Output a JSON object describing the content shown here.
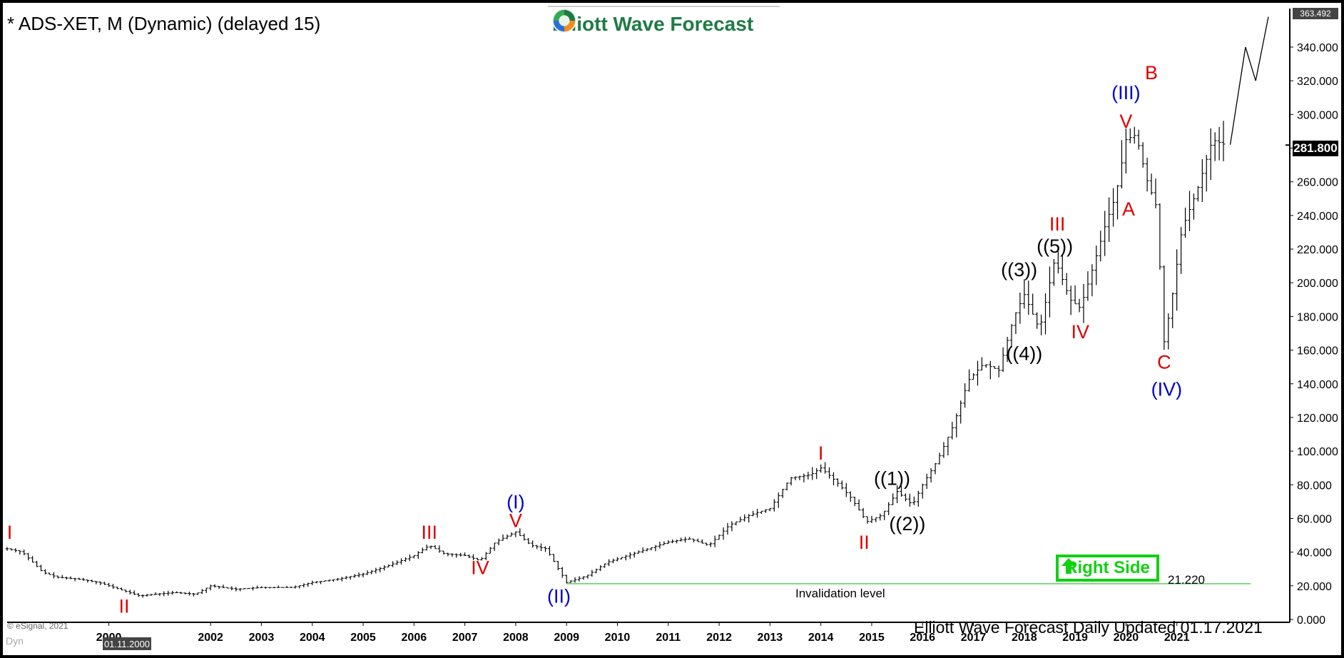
{
  "header": {
    "title": "* ADS-XET, M (Dynamic) (delayed 15)"
  },
  "logo": {
    "text": "Elliott Wave Forecast",
    "brand_color": "#1e7b45"
  },
  "chart_data": {
    "type": "ohlc",
    "ylim": [
      0,
      363.492
    ],
    "yticks": [
      0,
      20,
      40,
      60,
      80,
      100,
      120,
      140,
      160,
      180,
      200,
      220,
      240,
      260,
      280,
      300,
      320,
      340
    ],
    "ytick_labels": [
      "0.000",
      "20.000",
      "40.000",
      "60.000",
      "80.000",
      "100.000",
      "120.000",
      "140.000",
      "160.000",
      "180.000",
      "200.000",
      "220.000",
      "240.000",
      "260.000",
      "280.000",
      "300.000",
      "320.000",
      "340.000"
    ],
    "top_value_label": "363.492",
    "current_value": 281.8,
    "current_value_label": "281.800",
    "xlim": [
      1998.0,
      2022.8
    ],
    "xticks": [
      2000,
      2002,
      2003,
      2004,
      2005,
      2006,
      2007,
      2008,
      2009,
      2010,
      2011,
      2012,
      2013,
      2014,
      2015,
      2016,
      2017,
      2018,
      2019,
      2020,
      2021
    ],
    "xtick_labels": [
      "2000",
      "2002",
      "2003",
      "2004",
      "2005",
      "2006",
      "2007",
      "2008",
      "2009",
      "2010",
      "2011",
      "2012",
      "2013",
      "2014",
      "2015",
      "2016",
      "2017",
      "2018",
      "2019",
      "2020",
      "2021"
    ],
    "x_highlight_label": "01.11.2000",
    "price_path": [
      [
        1998.0,
        42
      ],
      [
        1998.3,
        40
      ],
      [
        1998.7,
        28
      ],
      [
        1999.0,
        25
      ],
      [
        1999.4,
        24
      ],
      [
        1999.8,
        22
      ],
      [
        2000.3,
        17
      ],
      [
        2000.6,
        14
      ],
      [
        2000.9,
        15
      ],
      [
        2001.3,
        16
      ],
      [
        2001.7,
        15
      ],
      [
        2002.0,
        20
      ],
      [
        2002.5,
        18
      ],
      [
        2003.0,
        19
      ],
      [
        2003.6,
        19
      ],
      [
        2004.0,
        22
      ],
      [
        2004.5,
        24
      ],
      [
        2005.0,
        27
      ],
      [
        2005.5,
        32
      ],
      [
        2006.0,
        38
      ],
      [
        2006.3,
        44
      ],
      [
        2006.6,
        39
      ],
      [
        2007.0,
        38
      ],
      [
        2007.3,
        35
      ],
      [
        2007.6,
        46
      ],
      [
        2008.0,
        52
      ],
      [
        2008.3,
        44
      ],
      [
        2008.6,
        42
      ],
      [
        2009.0,
        22
      ],
      [
        2009.4,
        26
      ],
      [
        2009.8,
        34
      ],
      [
        2010.2,
        38
      ],
      [
        2010.6,
        42
      ],
      [
        2011.0,
        46
      ],
      [
        2011.4,
        48
      ],
      [
        2011.8,
        44
      ],
      [
        2012.2,
        56
      ],
      [
        2012.6,
        62
      ],
      [
        2013.0,
        66
      ],
      [
        2013.4,
        84
      ],
      [
        2013.8,
        86
      ],
      [
        2014.0,
        90
      ],
      [
        2014.3,
        82
      ],
      [
        2014.6,
        72
      ],
      [
        2014.9,
        58
      ],
      [
        2015.2,
        62
      ],
      [
        2015.5,
        76
      ],
      [
        2015.8,
        68
      ],
      [
        2016.0,
        80
      ],
      [
        2016.3,
        95
      ],
      [
        2016.6,
        115
      ],
      [
        2016.9,
        142
      ],
      [
        2017.2,
        152
      ],
      [
        2017.5,
        148
      ],
      [
        2017.8,
        180
      ],
      [
        2018.0,
        193
      ],
      [
        2018.3,
        172
      ],
      [
        2018.6,
        214
      ],
      [
        2018.9,
        190
      ],
      [
        2019.1,
        185
      ],
      [
        2019.3,
        204
      ],
      [
        2019.6,
        235
      ],
      [
        2019.8,
        252
      ],
      [
        2020.0,
        285
      ],
      [
        2020.2,
        288
      ],
      [
        2020.4,
        262
      ],
      [
        2020.6,
        245
      ],
      [
        2020.75,
        165
      ],
      [
        2020.9,
        190
      ],
      [
        2021.1,
        232
      ],
      [
        2021.4,
        255
      ],
      [
        2021.7,
        285
      ],
      [
        2021.95,
        282
      ]
    ],
    "projection": [
      [
        2022.05,
        282
      ],
      [
        2022.35,
        340
      ],
      [
        2022.55,
        320
      ],
      [
        2022.8,
        358
      ]
    ],
    "invalidation_level": 21.22,
    "invalidation_label": "Invalidation level",
    "invalidation_value_label": "21.220",
    "wave_labels": [
      {
        "text": "I",
        "x": 1998.05,
        "y": 48,
        "color": "#e00000"
      },
      {
        "text": "II",
        "x": 2000.3,
        "y": 4,
        "color": "#e00000"
      },
      {
        "text": "III",
        "x": 2006.3,
        "y": 48,
        "color": "#e00000"
      },
      {
        "text": "IV",
        "x": 2007.3,
        "y": 27,
        "color": "#e00000"
      },
      {
        "text": "V",
        "x": 2008.0,
        "y": 55,
        "color": "#e00000"
      },
      {
        "text": "(I)",
        "x": 2008.0,
        "y": 66,
        "color": "#0000d0"
      },
      {
        "text": "(II)",
        "x": 2008.85,
        "y": 10,
        "color": "#0000d0"
      },
      {
        "text": "I",
        "x": 2014.0,
        "y": 95,
        "color": "#e00000"
      },
      {
        "text": "II",
        "x": 2014.85,
        "y": 42,
        "color": "#e00000"
      },
      {
        "text": "((1))",
        "x": 2015.4,
        "y": 80,
        "color": "#000000"
      },
      {
        "text": "((2))",
        "x": 2015.7,
        "y": 53,
        "color": "#000000"
      },
      {
        "text": "((3))",
        "x": 2017.9,
        "y": 204,
        "color": "#000000"
      },
      {
        "text": "((4))",
        "x": 2018.0,
        "y": 154,
        "color": "#000000"
      },
      {
        "text": "((5))",
        "x": 2018.6,
        "y": 218,
        "color": "#000000"
      },
      {
        "text": "III",
        "x": 2018.65,
        "y": 231,
        "color": "#e00000"
      },
      {
        "text": "IV",
        "x": 2019.1,
        "y": 167,
        "color": "#e00000"
      },
      {
        "text": "(III)",
        "x": 2020.0,
        "y": 309,
        "color": "#0000d0"
      },
      {
        "text": "V",
        "x": 2020.0,
        "y": 292,
        "color": "#e00000"
      },
      {
        "text": "B",
        "x": 2020.5,
        "y": 321,
        "color": "#e00000"
      },
      {
        "text": "A",
        "x": 2020.05,
        "y": 240,
        "color": "#e00000"
      },
      {
        "text": "C",
        "x": 2020.75,
        "y": 149,
        "color": "#e00000"
      },
      {
        "text": "(IV)",
        "x": 2020.8,
        "y": 133,
        "color": "#0000d0"
      }
    ]
  },
  "badge": {
    "label": "Right Side",
    "arrow": "up-arrow-icon",
    "color": "#12d012"
  },
  "footer": {
    "text": "Elliott Wave Forecast Daily Updated 01.17.2021"
  },
  "copyright": "© eSignal, 2021",
  "watermark": "Dyn"
}
